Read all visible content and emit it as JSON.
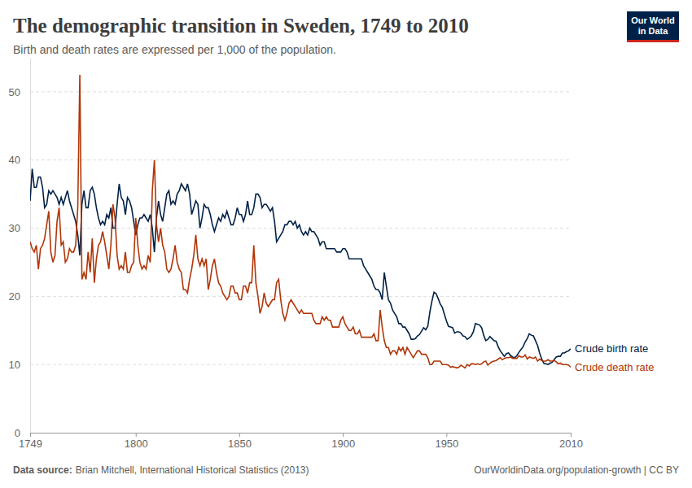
{
  "chart_data": {
    "type": "line",
    "title": "The demographic transition in Sweden, 1749 to 2010",
    "subtitle": "Birth and death rates are expressed per 1,000 of the population.",
    "logo": [
      "Our World",
      "in Data"
    ],
    "source_label": "Data source:",
    "source": "Brian Mitchell, International Historical Statistics (2013)",
    "footer_right": "OurWorldinData.org/population-growth | CC BY",
    "grid": true,
    "xlim": [
      1749,
      2010
    ],
    "xticks": [
      1749,
      1800,
      1850,
      1900,
      1950,
      2010
    ],
    "ylim": [
      0,
      55
    ],
    "yticks": [
      0,
      10,
      20,
      30,
      40,
      50
    ],
    "x": [
      1749,
      1750,
      1751,
      1752,
      1753,
      1754,
      1755,
      1756,
      1757,
      1758,
      1759,
      1760,
      1761,
      1762,
      1763,
      1764,
      1765,
      1766,
      1767,
      1768,
      1769,
      1770,
      1771,
      1772,
      1773,
      1774,
      1775,
      1776,
      1777,
      1778,
      1779,
      1780,
      1781,
      1782,
      1783,
      1784,
      1785,
      1786,
      1787,
      1788,
      1789,
      1790,
      1791,
      1792,
      1793,
      1794,
      1795,
      1796,
      1797,
      1798,
      1799,
      1800,
      1801,
      1802,
      1803,
      1804,
      1805,
      1806,
      1807,
      1808,
      1809,
      1810,
      1811,
      1812,
      1813,
      1814,
      1815,
      1816,
      1817,
      1818,
      1819,
      1820,
      1821,
      1822,
      1823,
      1824,
      1825,
      1826,
      1827,
      1828,
      1829,
      1830,
      1831,
      1832,
      1833,
      1834,
      1835,
      1836,
      1837,
      1838,
      1839,
      1840,
      1841,
      1842,
      1843,
      1844,
      1845,
      1846,
      1847,
      1848,
      1849,
      1850,
      1851,
      1852,
      1853,
      1854,
      1855,
      1856,
      1857,
      1858,
      1859,
      1860,
      1861,
      1862,
      1863,
      1864,
      1865,
      1866,
      1867,
      1868,
      1869,
      1870,
      1871,
      1872,
      1873,
      1874,
      1875,
      1876,
      1877,
      1878,
      1879,
      1880,
      1881,
      1882,
      1883,
      1884,
      1885,
      1886,
      1887,
      1888,
      1889,
      1890,
      1891,
      1892,
      1893,
      1894,
      1895,
      1896,
      1897,
      1898,
      1899,
      1900,
      1901,
      1902,
      1903,
      1904,
      1905,
      1906,
      1907,
      1908,
      1909,
      1910,
      1911,
      1912,
      1913,
      1914,
      1915,
      1916,
      1917,
      1918,
      1919,
      1920,
      1921,
      1922,
      1923,
      1924,
      1925,
      1926,
      1927,
      1928,
      1929,
      1930,
      1931,
      1932,
      1933,
      1934,
      1935,
      1936,
      1937,
      1938,
      1939,
      1940,
      1941,
      1942,
      1943,
      1944,
      1945,
      1946,
      1947,
      1948,
      1949,
      1950,
      1951,
      1952,
      1953,
      1954,
      1955,
      1956,
      1957,
      1958,
      1959,
      1960,
      1961,
      1962,
      1963,
      1964,
      1965,
      1966,
      1967,
      1968,
      1969,
      1970,
      1971,
      1972,
      1973,
      1974,
      1975,
      1976,
      1977,
      1978,
      1979,
      1980,
      1981,
      1982,
      1983,
      1984,
      1985,
      1986,
      1987,
      1988,
      1989,
      1990,
      1991,
      1992,
      1993,
      1994,
      1995,
      1996,
      1997,
      1998,
      1999,
      2000,
      2001,
      2002,
      2003,
      2004,
      2005,
      2006,
      2007,
      2008,
      2009,
      2010
    ],
    "series": [
      {
        "name": "Crude birth rate",
        "color": "#002147",
        "values": [
          34,
          38.7,
          36,
          36,
          37.5,
          37.5,
          36,
          33,
          33.5,
          35.5,
          35,
          35.5,
          35,
          34.5,
          33.5,
          34.5,
          33.5,
          34.5,
          35.5,
          34,
          33,
          32,
          31,
          29,
          26,
          33.5,
          35.5,
          33,
          33,
          35.5,
          36,
          35,
          33,
          31.5,
          30.5,
          31,
          30.5,
          32,
          31.5,
          33,
          30,
          30,
          33.5,
          36.5,
          34.5,
          34,
          32,
          34.5,
          34,
          33,
          31,
          29,
          30.5,
          31.5,
          31.5,
          32,
          31.5,
          31,
          32,
          30,
          26.5,
          31.5,
          34,
          32,
          31,
          33,
          35,
          35.5,
          33.5,
          34,
          33.5,
          35,
          35.5,
          36.5,
          36,
          35.5,
          36.5,
          35,
          32,
          33,
          34,
          33.5,
          30,
          31.5,
          33.5,
          33,
          33,
          32,
          30.5,
          29.5,
          30.5,
          31.5,
          31,
          32,
          31.5,
          32.5,
          31.5,
          30.5,
          30.5,
          31.5,
          33,
          32,
          32,
          31,
          32,
          34,
          32,
          32,
          33,
          35,
          35,
          34.5,
          33,
          33.5,
          33.5,
          33,
          32.5,
          33,
          31,
          28,
          28.5,
          29,
          29.5,
          30.5,
          30.5,
          31,
          31,
          30.5,
          31,
          30,
          30.5,
          29.5,
          29,
          29.5,
          29,
          30,
          29.5,
          29.5,
          29,
          28.5,
          27.5,
          28,
          28,
          27,
          27,
          27,
          27,
          27,
          26.5,
          26.5,
          26.5,
          27,
          27,
          26.5,
          25.5,
          25.5,
          25.5,
          25.5,
          25.5,
          25.5,
          25.5,
          24.5,
          24,
          23.5,
          23,
          22.5,
          21.5,
          21,
          21,
          20.5,
          19.5,
          23.5,
          21.5,
          19.5,
          19,
          18,
          17.5,
          17,
          16,
          16,
          15.5,
          15.5,
          15,
          14.5,
          13.7,
          13.7,
          13.8,
          14.2,
          14.4,
          14.9,
          15.4,
          15.1,
          15.6,
          17.7,
          19.3,
          20.6,
          20.4,
          19.7,
          18.9,
          18.4,
          17.4,
          16.4,
          15.6,
          15.5,
          15.4,
          14.6,
          14.8,
          14.8,
          14.6,
          14.2,
          14.1,
          13.7,
          13.9,
          14.2,
          14.8,
          16,
          15.9,
          15.8,
          15.4,
          14.3,
          13.5,
          13.7,
          14.1,
          13.8,
          13.5,
          13.4,
          12.6,
          12,
          11.6,
          11.2,
          11.6,
          11.7,
          11.3,
          11.1,
          11,
          11.3,
          11.8,
          12.2,
          12.6,
          13.3,
          13.8,
          14.5,
          14.3,
          14.2,
          13.5,
          12.8,
          11.7,
          10.8,
          10.2,
          10.1,
          10,
          10.2,
          10.3,
          10.7,
          11.1,
          11.2,
          11.2,
          11.7,
          11.7,
          11.9,
          12,
          12.3
        ]
      },
      {
        "name": "Crude death rate",
        "color": "#b13507",
        "values": [
          28,
          27,
          26.5,
          27.5,
          24,
          27,
          27.5,
          28.5,
          30.5,
          32.5,
          26.5,
          25,
          26,
          31,
          33,
          27.5,
          28,
          25,
          25.5,
          27,
          26.5,
          26.5,
          27.5,
          33,
          52.5,
          22.5,
          23.5,
          22.5,
          26.5,
          23.5,
          28.5,
          22,
          25.5,
          27.5,
          28,
          29.5,
          28,
          26,
          24,
          27.5,
          33.5,
          31.5,
          26,
          24,
          24.5,
          24,
          26.5,
          23.5,
          23.5,
          24.5,
          25,
          31.5,
          27.5,
          25,
          24,
          24.5,
          24,
          26,
          25,
          35.5,
          40,
          30.5,
          28,
          30,
          27.5,
          26.5,
          24,
          23.5,
          24,
          25.5,
          27.5,
          25,
          24,
          23.5,
          21,
          21,
          20.5,
          22.5,
          24,
          26,
          29,
          25.5,
          24.5,
          25.5,
          24.5,
          25.5,
          21,
          22.5,
          24.5,
          25.5,
          23.5,
          22,
          21.5,
          20.5,
          20,
          19.5,
          20,
          21.5,
          21.5,
          20.5,
          20.5,
          19.5,
          19.5,
          21.5,
          21.5,
          20.5,
          22,
          22,
          27.5,
          22,
          20,
          17.5,
          18.5,
          20.5,
          19,
          18.5,
          19,
          19.5,
          19.5,
          22,
          22.5,
          19.5,
          17.5,
          16.5,
          17.5,
          19,
          19.5,
          19,
          18.5,
          18,
          17.5,
          18,
          17.5,
          17.5,
          17.5,
          17.5,
          17.5,
          16.5,
          16,
          16,
          16,
          17,
          16.5,
          17,
          16.5,
          16.5,
          15.5,
          15.5,
          15.5,
          15.5,
          16.5,
          17,
          16,
          15.5,
          15,
          15,
          15.5,
          14.5,
          14.5,
          15,
          14,
          14,
          14,
          14,
          14,
          14,
          14.5,
          13.5,
          13.5,
          18,
          15.5,
          13.5,
          12.5,
          12.5,
          11.5,
          12,
          12,
          11.5,
          12.5,
          12,
          12.5,
          11.5,
          12.5,
          12,
          11.5,
          11,
          11.5,
          12,
          12,
          11.5,
          11.5,
          11.5,
          11,
          10,
          10,
          10.5,
          10.5,
          10.5,
          10.5,
          10,
          10,
          10,
          9.9,
          9.6,
          9.7,
          9.6,
          9.5,
          9.6,
          9.9,
          9.7,
          9.5,
          10,
          9.8,
          10.1,
          10.1,
          10,
          10.1,
          10,
          10.1,
          10.4,
          10.5,
          9.9,
          10.2,
          10.4,
          10.5,
          10.6,
          10.8,
          11,
          10.7,
          10.9,
          11,
          11,
          11.1,
          10.9,
          10.9,
          10.9,
          11.3,
          11.1,
          11.1,
          11.4,
          10.8,
          11.1,
          11,
          10.9,
          11.1,
          10.5,
          10.8,
          10.6,
          10.5,
          10.5,
          10.7,
          10.5,
          10.5,
          10.6,
          10.4,
          10.1,
          10.2,
          10,
          10,
          10,
          9.9,
          9.6
        ]
      }
    ]
  }
}
